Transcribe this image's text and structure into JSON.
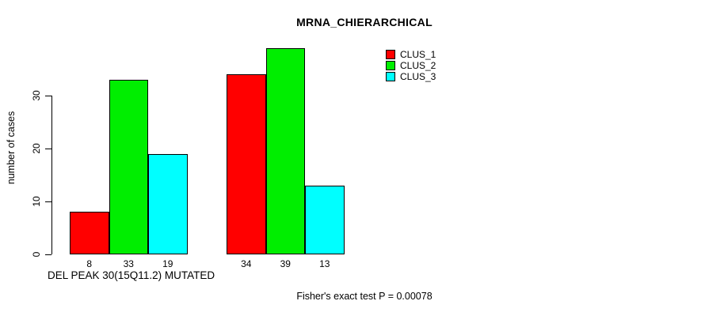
{
  "chart_data": {
    "type": "bar",
    "title": "MRNA_CHIERARCHICAL",
    "ylabel": "number of cases",
    "xlabel": "DEL PEAK 30(15Q11.2) MUTATED",
    "annotation": "Fisher's exact test P = 0.00078",
    "categories": [
      "DEL PEAK 30(15Q11.2) MUTATED",
      ""
    ],
    "series": [
      {
        "name": "CLUS_1",
        "color": "#ff0000",
        "values": [
          8,
          34
        ]
      },
      {
        "name": "CLUS_2",
        "color": "#00ee00",
        "values": [
          33,
          39
        ]
      },
      {
        "name": "CLUS_3",
        "color": "#00ffff",
        "values": [
          19,
          13
        ]
      }
    ],
    "bar_value_labels": [
      [
        8,
        33,
        19
      ],
      [
        34,
        39,
        13
      ]
    ],
    "yticks": [
      0,
      10,
      20,
      30
    ],
    "ylim": [
      0,
      40
    ],
    "grid": false,
    "legend_position": "top-right",
    "axis_color": "#000000",
    "background_color": "#ffffff"
  }
}
